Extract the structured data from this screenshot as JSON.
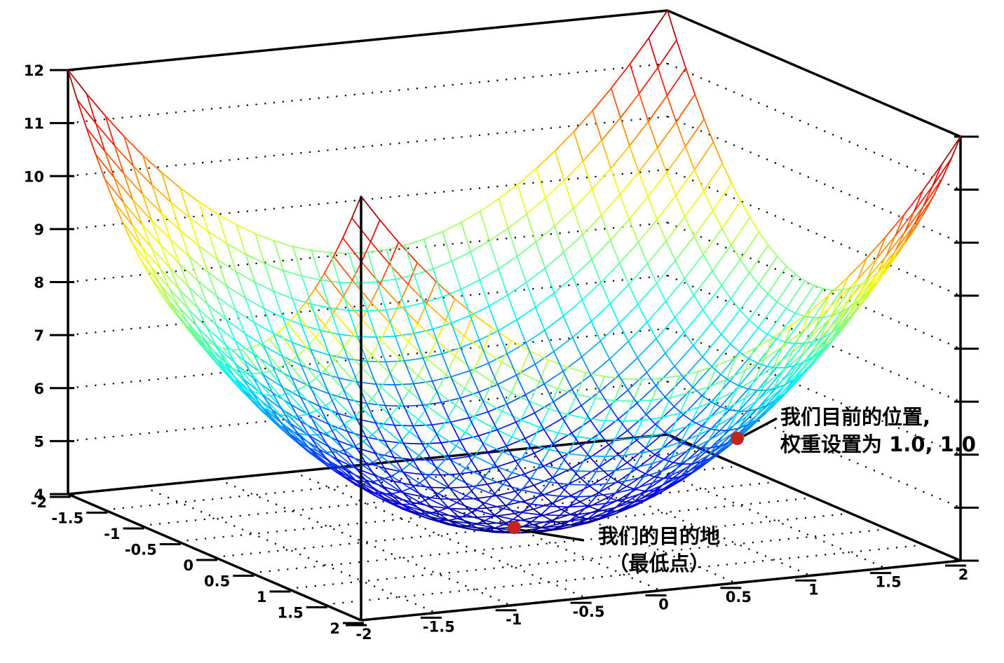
{
  "chart_data": {
    "type": "surface",
    "subtype": "3d-wireframe-mesh",
    "title": "",
    "z_function": "z = x^2 + y^2 + 4",
    "x_range": [
      -2,
      2
    ],
    "y_range": [
      -2,
      2
    ],
    "z_range": [
      4,
      12
    ],
    "grid_step": 0.125,
    "x_tick_labels": [
      "-2",
      "-1.5",
      "-1",
      "-0.5",
      "0",
      "0.5",
      "1",
      "1.5",
      "2"
    ],
    "y_tick_labels": [
      "-2",
      "-1.5",
      "-1",
      "-0.5",
      "0",
      "0.5",
      "1",
      "1.5",
      "2"
    ],
    "z_tick_labels": [
      "4",
      "5",
      "6",
      "7",
      "8",
      "9",
      "10",
      "11",
      "12"
    ],
    "colormap": "jet",
    "grid_style": "dotted",
    "legend": "none",
    "points": [
      {
        "id": "current-position",
        "x": 1.0,
        "y": 1.0,
        "z": 6.0,
        "color": "#c3241c",
        "label": [
          "我们目前的位置,",
          "权重设置为 1.0, 1.0"
        ]
      },
      {
        "id": "destination",
        "x": 0.0,
        "y": 0.0,
        "z": 4.0,
        "color": "#c3241c",
        "label": [
          "我们的目的地",
          "（最低点）"
        ]
      }
    ]
  },
  "colors": {
    "axis": "#000000",
    "grid_dots": "#000000",
    "marker": "#c3241c",
    "background": "#ffffff"
  }
}
